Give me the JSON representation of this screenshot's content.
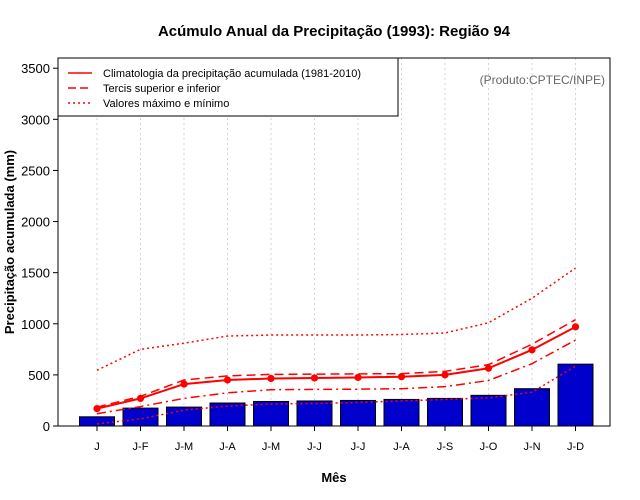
{
  "chart_data": {
    "type": "bar",
    "title": "Acúmulo Anual da Precipitação (1993): Região 94",
    "xlabel": "Mês",
    "ylabel": "Precipitação acumulada (mm)",
    "credit": "(Produto:CPTEC/INPE)",
    "ylim": [
      0,
      3600
    ],
    "yticks": [
      0,
      500,
      1000,
      1500,
      2000,
      2500,
      3000,
      3500
    ],
    "grid": true,
    "legend_position": "top-left",
    "categories": [
      "J",
      "J-F",
      "J-M",
      "J-A",
      "J-M",
      "J-J",
      "J-J",
      "J-A",
      "J-S",
      "J-O",
      "J-N",
      "J-D"
    ],
    "values": [
      90,
      175,
      185,
      225,
      240,
      245,
      250,
      260,
      270,
      300,
      365,
      605
    ],
    "series": [
      {
        "name": "Climatologia da precipitação acumulada (1981-2010)",
        "style": "solid",
        "markers": true,
        "values": [
          170,
          270,
          410,
          450,
          465,
          470,
          475,
          482,
          500,
          565,
          745,
          970
        ]
      },
      {
        "name": "Tercis superior e inferior (superior)",
        "style": "dashed",
        "values": [
          185,
          290,
          450,
          490,
          505,
          507,
          510,
          512,
          535,
          600,
          800,
          1040
        ]
      },
      {
        "name": "Tercis superior e inferior (inferior)",
        "style": "dashdot",
        "values": [
          120,
          190,
          270,
          325,
          355,
          358,
          360,
          365,
          385,
          445,
          610,
          840
        ]
      },
      {
        "name": "Valores máximo e mínimo (máximo)",
        "style": "dotted",
        "values": [
          545,
          750,
          810,
          880,
          890,
          890,
          890,
          895,
          910,
          1010,
          1250,
          1545
        ]
      },
      {
        "name": "Valores máximo e mínimo (mínimo)",
        "style": "dotted",
        "values": [
          20,
          70,
          155,
          195,
          215,
          220,
          230,
          245,
          260,
          275,
          330,
          585
        ]
      }
    ],
    "legend": [
      {
        "label": "Climatologia da precipitação acumulada (1981-2010)",
        "style": "solid"
      },
      {
        "label": "Tercis superior e inferior",
        "style": "dashed"
      },
      {
        "label": "Valores máximo e mínimo",
        "style": "dotted"
      }
    ],
    "colors": {
      "bar": "#0000cc",
      "line": "#ff0000",
      "grid": "#d3d3d3"
    }
  }
}
